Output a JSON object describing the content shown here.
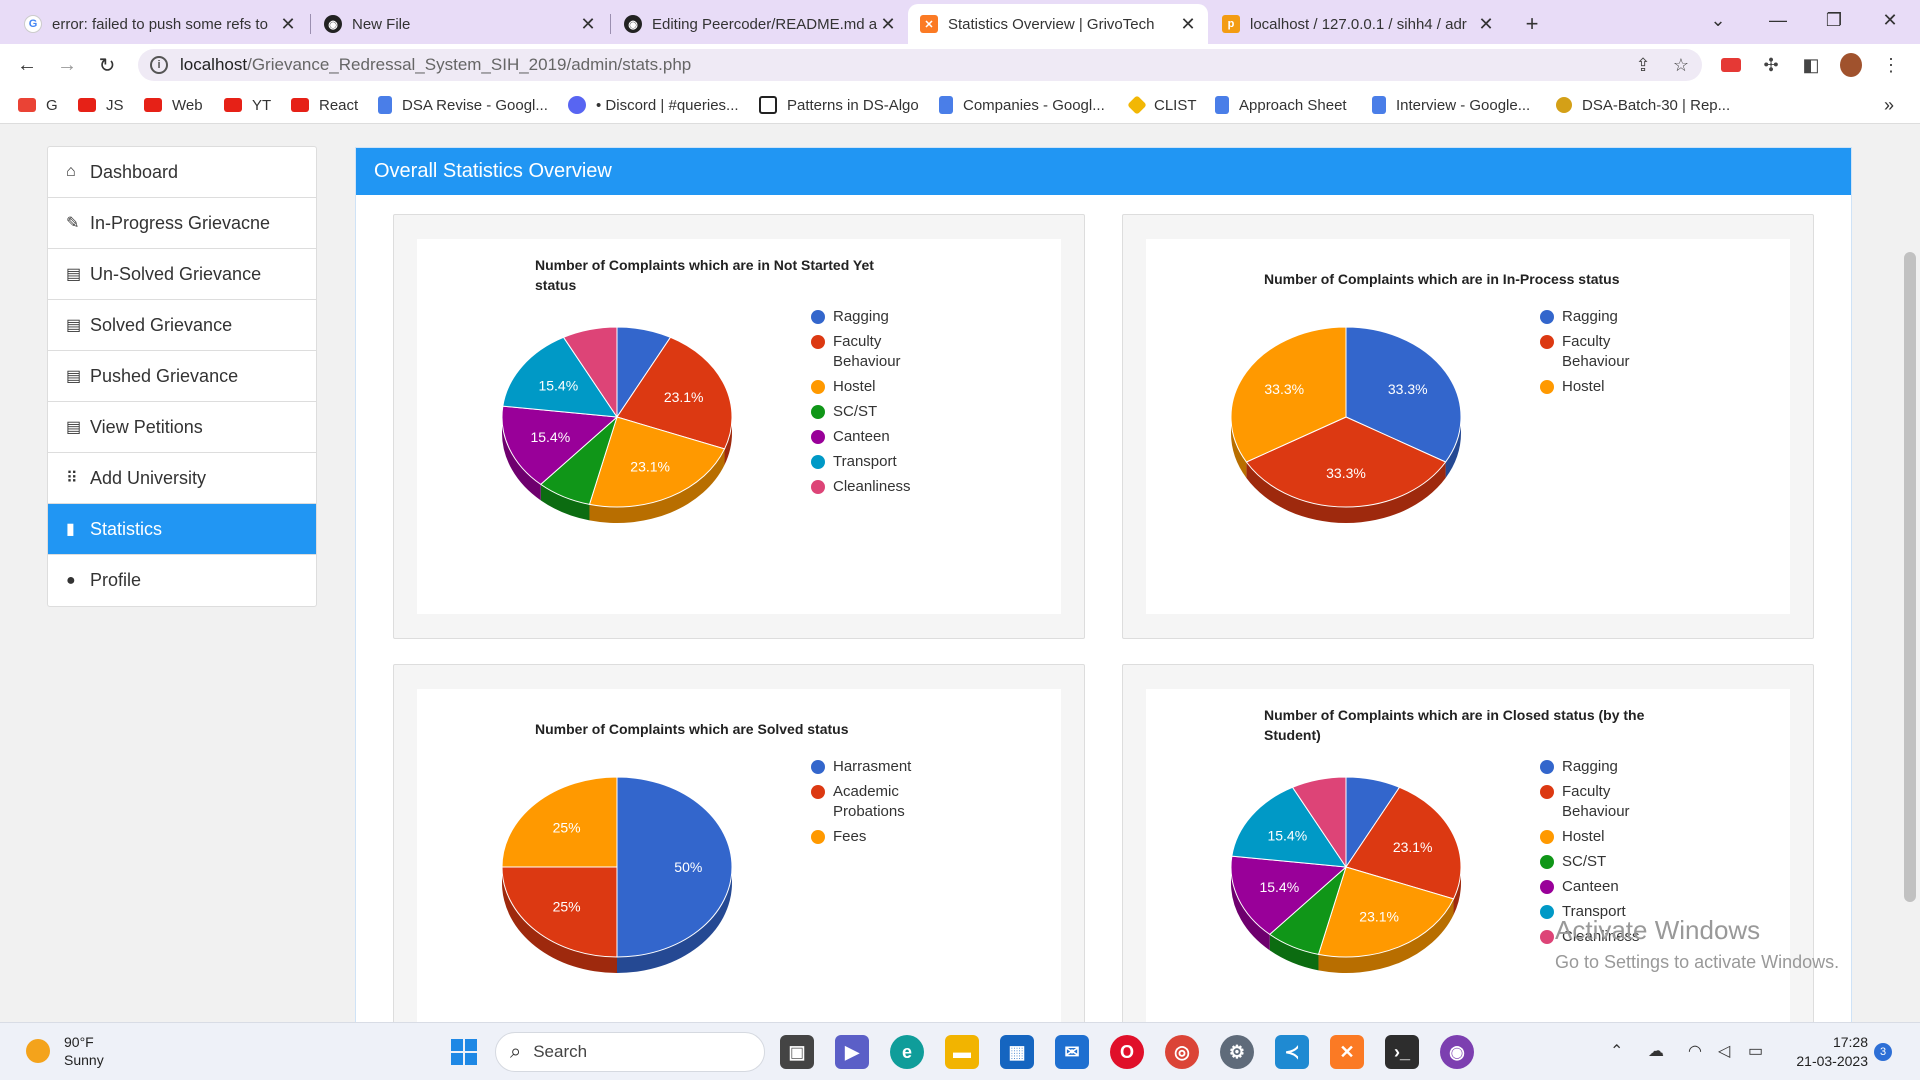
{
  "browser": {
    "tabs": [
      {
        "title": "error: failed to push some refs to",
        "icon": "google-icon",
        "color": "#4285f4"
      },
      {
        "title": "New File",
        "icon": "github-icon",
        "color": "#222222"
      },
      {
        "title": "Editing Peercoder/README.md a",
        "icon": "github-icon",
        "color": "#222222"
      },
      {
        "title": "Statistics Overview | GrivoTech",
        "icon": "xampp-icon",
        "color": "#fb7a24"
      },
      {
        "title": "localhost / 127.0.0.1 / sihh4 / adr",
        "icon": "phpmyadmin-icon",
        "color": "#f39c12"
      }
    ],
    "new_tab": "+",
    "url_host": "localhost",
    "url_path": "/Grievance_Redressal_System_SIH_2019/admin/stats.php",
    "bookmarks": [
      {
        "label": "G",
        "icon": "gmail-icon",
        "color": "#ea4335"
      },
      {
        "label": "JS",
        "icon": "youtube-icon",
        "color": "#e62117"
      },
      {
        "label": "Web",
        "icon": "youtube-icon",
        "color": "#e62117"
      },
      {
        "label": "YT",
        "icon": "youtube-icon",
        "color": "#e62117"
      },
      {
        "label": "React",
        "icon": "youtube-icon",
        "color": "#e62117"
      },
      {
        "label": "DSA Revise - Googl...",
        "icon": "google-docs-icon",
        "color": "#4a7ee8"
      },
      {
        "label": "• Discord | #queries...",
        "icon": "discord-icon",
        "color": "#5865f2"
      },
      {
        "label": "Patterns in DS-Algo",
        "icon": "notion-icon",
        "color": "#222222"
      },
      {
        "label": "Companies - Googl...",
        "icon": "google-docs-icon",
        "color": "#4a7ee8"
      },
      {
        "label": "CLIST",
        "icon": "clist-icon",
        "color": "#f2b705"
      },
      {
        "label": "Approach Sheet",
        "icon": "google-docs-icon",
        "color": "#4a7ee8"
      },
      {
        "label": "Interview - Google...",
        "icon": "google-docs-icon",
        "color": "#4a7ee8"
      },
      {
        "label": "DSA-Batch-30 | Rep...",
        "icon": "replit-icon",
        "color": "#d4a017"
      }
    ],
    "more_bookmarks": "»"
  },
  "sidebar": {
    "items": [
      {
        "label": "Dashboard",
        "icon": "home-icon",
        "glyph": "⌂",
        "active": false
      },
      {
        "label": "In-Progress Grievacne",
        "icon": "pencil-icon",
        "glyph": "✎",
        "active": false
      },
      {
        "label": "Un-Solved Grievance",
        "icon": "list-icon",
        "glyph": "▤",
        "active": false
      },
      {
        "label": "Solved Grievance",
        "icon": "list-icon",
        "glyph": "▤",
        "active": false
      },
      {
        "label": "Pushed Grievance",
        "icon": "list-icon",
        "glyph": "▤",
        "active": false
      },
      {
        "label": "View Petitions",
        "icon": "list-icon",
        "glyph": "▤",
        "active": false
      },
      {
        "label": "Add University",
        "icon": "grid-icon",
        "glyph": "⠿",
        "active": false
      },
      {
        "label": "Statistics",
        "icon": "bar-chart-icon",
        "glyph": "▮",
        "active": true
      },
      {
        "label": "Profile",
        "icon": "user-icon",
        "glyph": "●",
        "active": false
      }
    ]
  },
  "panel": {
    "title": "Overall Statistics Overview",
    "accent": "#2196f3"
  },
  "chart_data": [
    {
      "type": "pie",
      "title": "Number of Complaints which are in Not Started Yet status",
      "categories": [
        "Ragging",
        "Faculty Behaviour",
        "Hostel",
        "SC/ST",
        "Canteen",
        "Transport",
        "Cleanliness"
      ],
      "values": [
        7.7,
        23.1,
        23.1,
        7.7,
        15.4,
        15.4,
        7.7
      ],
      "labels": [
        "",
        "23.1%",
        "23.1%",
        "",
        "15.4%",
        "15.4%",
        ""
      ],
      "colors": [
        "#3366cc",
        "#dc3912",
        "#ff9900",
        "#109618",
        "#990099",
        "#0099c6",
        "#dd4477"
      ],
      "legend": "right"
    },
    {
      "type": "pie",
      "title": "Number of Complaints which are in In-Process status",
      "categories": [
        "Ragging",
        "Faculty Behaviour",
        "Hostel"
      ],
      "values": [
        33.3,
        33.3,
        33.3
      ],
      "labels": [
        "33.3%",
        "33.3%",
        "33.3%"
      ],
      "colors": [
        "#3366cc",
        "#dc3912",
        "#ff9900"
      ],
      "legend": "right"
    },
    {
      "type": "pie",
      "title": "Number of Complaints which are Solved status",
      "categories": [
        "Harrasment",
        "Academic Probations",
        "Fees"
      ],
      "values": [
        50,
        25,
        25
      ],
      "labels": [
        "50%",
        "25%",
        "25%"
      ],
      "colors": [
        "#3366cc",
        "#dc3912",
        "#ff9900"
      ],
      "legend": "right"
    },
    {
      "type": "pie",
      "title": "Number of Complaints which are in Closed status (by the Student)",
      "categories": [
        "Ragging",
        "Faculty Behaviour",
        "Hostel",
        "SC/ST",
        "Canteen",
        "Transport",
        "Cleanliness"
      ],
      "values": [
        7.7,
        23.1,
        23.1,
        7.7,
        15.4,
        15.4,
        7.7
      ],
      "labels": [
        "",
        "23.1%",
        "23.1%",
        "",
        "15.4%",
        "15.4%",
        ""
      ],
      "colors": [
        "#3366cc",
        "#dc3912",
        "#ff9900",
        "#109618",
        "#990099",
        "#0099c6",
        "#dd4477"
      ],
      "legend": "right"
    }
  ],
  "watermark": {
    "line1": "Activate Windows",
    "line2": "Go to Settings to activate Windows."
  },
  "taskbar": {
    "temp": "90°F",
    "weather": "Sunny",
    "search_placeholder": "Search",
    "time": "17:28",
    "date": "21-03-2023",
    "notifications": "3",
    "apps": [
      {
        "name": "start-icon",
        "color": "#1e88e5"
      },
      {
        "name": "task-view-icon",
        "color": "#444444"
      },
      {
        "name": "meet-icon",
        "color": "#5b5fc7"
      },
      {
        "name": "edge-icon",
        "color": "#0f9d9a"
      },
      {
        "name": "file-explorer-icon",
        "color": "#f2b400"
      },
      {
        "name": "store-icon",
        "color": "#1565c0"
      },
      {
        "name": "mail-icon",
        "color": "#1e6fd0"
      },
      {
        "name": "opera-icon",
        "color": "#e0102a"
      },
      {
        "name": "chrome-icon",
        "color": "#db4437"
      },
      {
        "name": "settings-icon",
        "color": "#5f6b7a"
      },
      {
        "name": "vscode-icon",
        "color": "#1f8ad2"
      },
      {
        "name": "xampp-icon",
        "color": "#fb7a24"
      },
      {
        "name": "terminal-icon",
        "color": "#2d2d2d"
      },
      {
        "name": "github-desktop-icon",
        "color": "#7c3fb0"
      }
    ]
  }
}
